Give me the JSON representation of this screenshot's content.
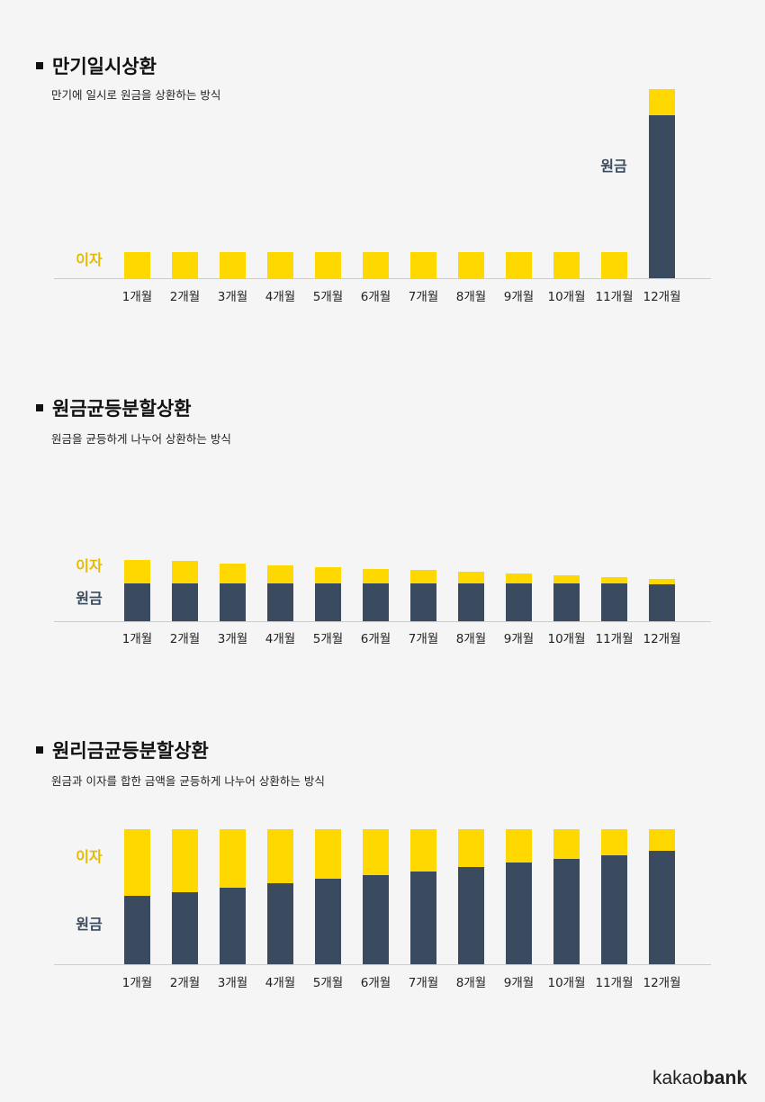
{
  "colors": {
    "principal": "#3a4a5f",
    "interest": "#ffd800",
    "axis": "#cccccc",
    "label_principal": "#3a4a5f",
    "label_interest": "#e4bb00"
  },
  "brand": {
    "light": "kakao",
    "bold": "bank"
  },
  "sections": [
    {
      "title": "만기일시상환",
      "subtitle": "만기에 일시로 원금을 상환하는 방식"
    },
    {
      "title": "원금균등분할상환",
      "subtitle": "원금을 균등하게 나누어 상환하는 방식"
    },
    {
      "title": "원리금균등분할상환",
      "subtitle": "원금과 이자를 합한 금액을 균등하게 나누어 상환하는 방식"
    }
  ],
  "chart_data": [
    {
      "type": "bar",
      "stacked": true,
      "categories": [
        "1개월",
        "2개월",
        "3개월",
        "4개월",
        "5개월",
        "6개월",
        "7개월",
        "8개월",
        "9개월",
        "10개월",
        "11개월",
        "12개월"
      ],
      "series": [
        {
          "name": "원금",
          "values": [
            0,
            0,
            0,
            0,
            0,
            0,
            0,
            0,
            0,
            0,
            0,
            181
          ]
        },
        {
          "name": "이자",
          "values": [
            29,
            29,
            29,
            29,
            29,
            29,
            29,
            29,
            29,
            29,
            29,
            29
          ]
        }
      ],
      "series_label_positions": [
        "near-last-bar",
        "left"
      ]
    },
    {
      "type": "bar",
      "stacked": true,
      "categories": [
        "1개월",
        "2개월",
        "3개월",
        "4개월",
        "5개월",
        "6개월",
        "7개월",
        "8개월",
        "9개월",
        "10개월",
        "11개월",
        "12개월"
      ],
      "series": [
        {
          "name": "원금",
          "values": [
            42,
            42,
            42,
            42,
            42,
            42,
            42,
            42,
            42,
            42,
            42,
            41
          ]
        },
        {
          "name": "이자",
          "values": [
            26,
            25,
            22,
            20,
            18,
            16,
            15,
            13,
            11,
            9,
            7,
            6
          ]
        }
      ],
      "series_label_positions": [
        "left",
        "left"
      ]
    },
    {
      "type": "bar",
      "stacked": true,
      "categories": [
        "1개월",
        "2개월",
        "3개월",
        "4개월",
        "5개월",
        "6개월",
        "7개월",
        "8개월",
        "9개월",
        "10개월",
        "11개월",
        "12개월"
      ],
      "series": [
        {
          "name": "원금",
          "values": [
            76,
            80,
            85,
            90,
            95,
            99,
            103,
            108,
            113,
            117,
            121,
            126
          ]
        },
        {
          "name": "이자",
          "values": [
            74,
            70,
            65,
            60,
            55,
            51,
            47,
            42,
            37,
            33,
            29,
            24
          ]
        }
      ],
      "series_label_positions": [
        "left",
        "left"
      ]
    }
  ]
}
